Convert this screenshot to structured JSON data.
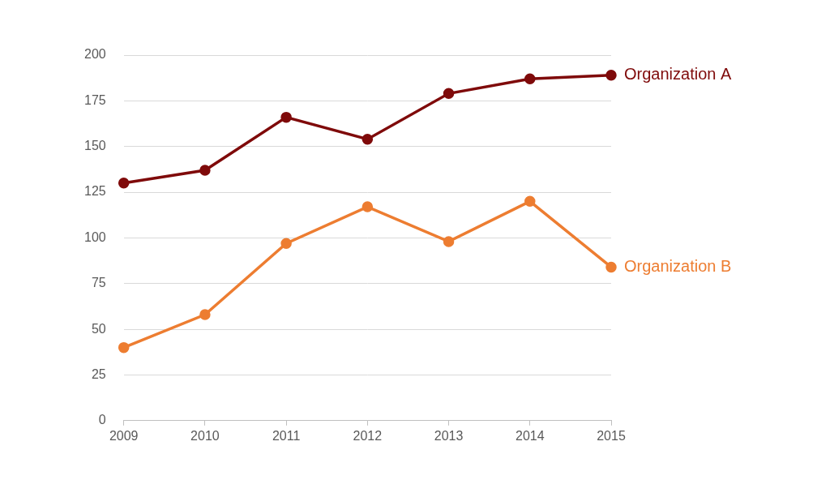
{
  "chart_data": {
    "type": "line",
    "categories": [
      "2009",
      "2010",
      "2011",
      "2012",
      "2013",
      "2014",
      "2015"
    ],
    "series": [
      {
        "name": "Organization A",
        "color": "#7f0a0a",
        "values": [
          130,
          137,
          166,
          154,
          179,
          187,
          189
        ]
      },
      {
        "name": "Organization B",
        "color": "#ed7d31",
        "values": [
          40,
          58,
          97,
          117,
          98,
          120,
          84
        ]
      }
    ],
    "ylim": [
      0,
      200
    ],
    "yticks": [
      0,
      25,
      50,
      75,
      100,
      125,
      150,
      175,
      200
    ],
    "grid": true,
    "marker": "circle",
    "line_style": "solid"
  }
}
